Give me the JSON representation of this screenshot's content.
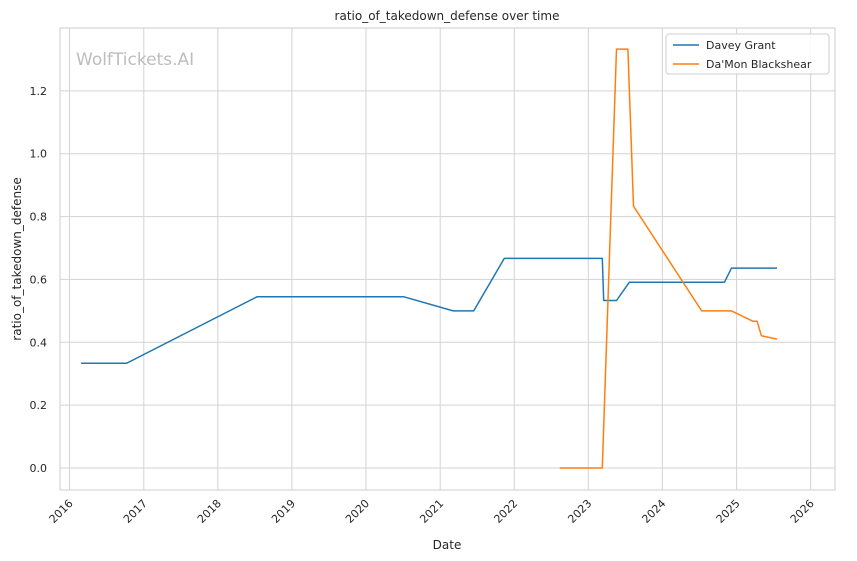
{
  "chart_data": {
    "type": "line",
    "title": "ratio_of_takedown_defense over time",
    "xlabel": "Date",
    "ylabel": "ratio_of_takedown_defense",
    "watermark": "WolfTickets.AI",
    "xlim": [
      "2015-11-15",
      "2026-05-01"
    ],
    "ylim": [
      -0.07,
      1.4
    ],
    "x_ticks": [
      "2016",
      "2017",
      "2018",
      "2019",
      "2020",
      "2021",
      "2022",
      "2023",
      "2024",
      "2025",
      "2026"
    ],
    "y_ticks": [
      "0.0",
      "0.2",
      "0.4",
      "0.6",
      "0.8",
      "1.0",
      "1.2"
    ],
    "grid": true,
    "legend_position": "top-right",
    "series": [
      {
        "name": "Davey Grant",
        "color": "#1f77b4",
        "points": [
          [
            "2016-02-27",
            0.333
          ],
          [
            "2016-10-08",
            0.333
          ],
          [
            "2018-07-14",
            0.545
          ],
          [
            "2020-07-04",
            0.545
          ],
          [
            "2021-03-06",
            0.5
          ],
          [
            "2021-06-15",
            0.5
          ],
          [
            "2021-11-13",
            0.667
          ],
          [
            "2023-03-11",
            0.667
          ],
          [
            "2023-03-18",
            0.533
          ],
          [
            "2023-05-20",
            0.533
          ],
          [
            "2023-07-22",
            0.591
          ],
          [
            "2024-11-02",
            0.591
          ],
          [
            "2024-12-07",
            0.636
          ],
          [
            "2025-07-19",
            0.636
          ]
        ]
      },
      {
        "name": "Da'Mon Blackshear",
        "color": "#ff7f0e",
        "points": [
          [
            "2022-08-13",
            0.0
          ],
          [
            "2023-03-11",
            0.0
          ],
          [
            "2023-05-20",
            1.333
          ],
          [
            "2023-07-15",
            1.333
          ],
          [
            "2023-08-12",
            0.833
          ],
          [
            "2024-07-13",
            0.5
          ],
          [
            "2024-12-07",
            0.5
          ],
          [
            "2025-03-22",
            0.467
          ],
          [
            "2025-04-12",
            0.467
          ],
          [
            "2025-05-03",
            0.421
          ],
          [
            "2025-07-19",
            0.41
          ]
        ]
      }
    ]
  }
}
